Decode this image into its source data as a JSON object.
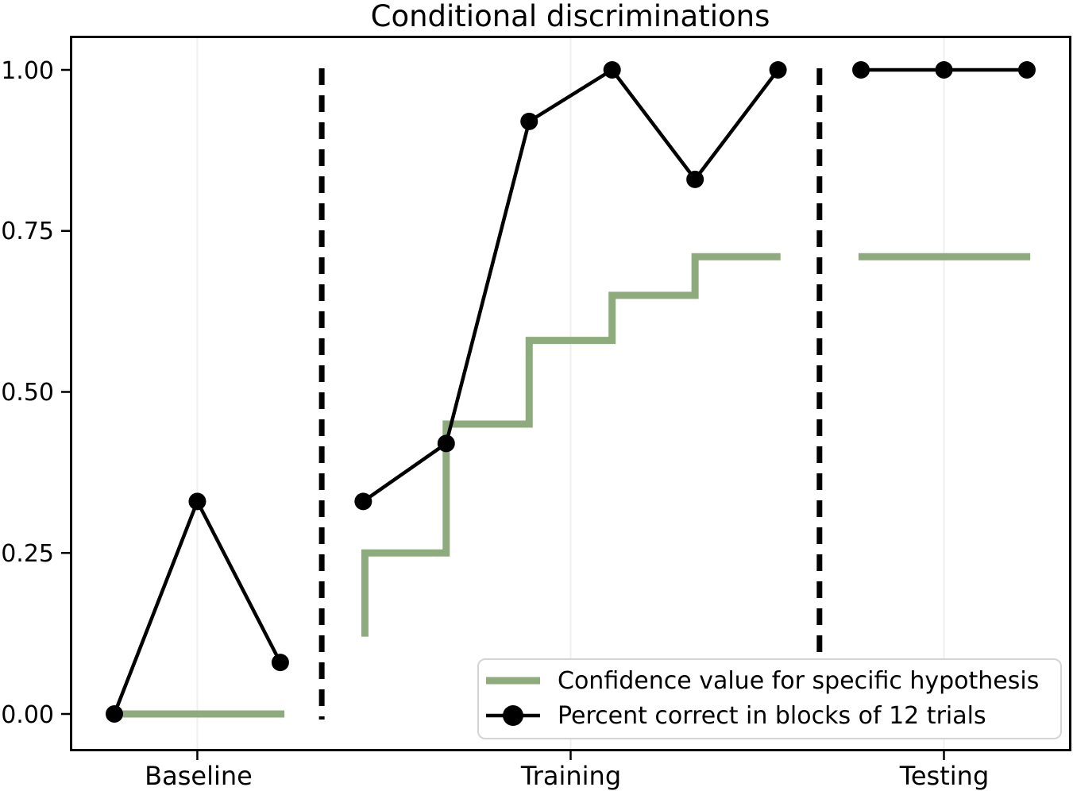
{
  "chart_data": {
    "type": "line",
    "title": "Conditional discriminations",
    "xlabel": "",
    "ylabel": "",
    "ylim": [
      -0.04,
      1.06
    ],
    "grid": "vertical-only-at-xticks",
    "yticks": [
      {
        "value": 0.0,
        "label": "0.00"
      },
      {
        "value": 0.25,
        "label": "0.25"
      },
      {
        "value": 0.5,
        "label": "0.50"
      },
      {
        "value": 0.75,
        "label": "0.75"
      },
      {
        "value": 1.0,
        "label": "1.00"
      }
    ],
    "xticks": [
      {
        "pos": 2.0,
        "label": "Baseline"
      },
      {
        "pos": 6.5,
        "label": "Training"
      },
      {
        "pos": 11.0,
        "label": "Testing"
      }
    ],
    "phases": [
      {
        "label": "Baseline",
        "blocks": [
          1,
          2,
          3
        ]
      },
      {
        "label": "Training",
        "blocks": [
          4,
          5,
          6,
          7,
          8,
          9
        ]
      },
      {
        "label": "Testing",
        "blocks": [
          10,
          11,
          12
        ]
      }
    ],
    "phase_dividers": {
      "style": "dashed",
      "color": "#000000",
      "positions": [
        3.5,
        9.5
      ]
    },
    "series": [
      {
        "name": "Confidence value for specific hypothesis",
        "type": "step",
        "color": "#8EAB7E",
        "line_width": 9,
        "values_per_block": [
          0.0,
          0.0,
          0.0,
          0.25,
          0.45,
          0.58,
          0.65,
          0.71,
          0.71,
          0.71,
          0.71,
          0.71
        ],
        "segments": [
          [
            [
              1.1,
              0.0
            ],
            [
              3.05,
              0.0
            ]
          ],
          [
            [
              4.02,
              0.12
            ],
            [
              4.02,
              0.25
            ],
            [
              5.0,
              0.25
            ],
            [
              5.0,
              0.45
            ],
            [
              6.0,
              0.45
            ],
            [
              6.0,
              0.58
            ],
            [
              7.0,
              0.58
            ],
            [
              7.0,
              0.65
            ],
            [
              8.0,
              0.65
            ],
            [
              8.0,
              0.71
            ],
            [
              9.03,
              0.71
            ]
          ],
          [
            [
              9.97,
              0.71
            ],
            [
              12.04,
              0.71
            ]
          ]
        ]
      },
      {
        "name": "Percent correct in blocks of 12 trials",
        "type": "line-marker",
        "color": "#000000",
        "line_width": 4.5,
        "marker_radius": 11,
        "values_per_block": [
          0.0,
          0.33,
          0.08,
          0.33,
          0.42,
          0.92,
          1.0,
          0.83,
          1.0,
          1.0,
          1.0,
          1.0
        ],
        "segments": [
          [
            [
              1.0,
              0.0
            ],
            [
              2.0,
              0.33
            ],
            [
              3.0,
              0.08
            ]
          ],
          [
            [
              4.0,
              0.33
            ],
            [
              5.0,
              0.42
            ],
            [
              6.0,
              0.92
            ],
            [
              7.0,
              1.0
            ],
            [
              8.0,
              0.83
            ],
            [
              9.0,
              1.0
            ]
          ],
          [
            [
              10.0,
              1.0
            ],
            [
              11.0,
              1.0
            ],
            [
              12.0,
              1.0
            ]
          ]
        ]
      }
    ],
    "legend": {
      "position": "lower right",
      "entries": [
        {
          "label": "Confidence value for specific hypothesis",
          "swatch": "thick-line",
          "color": "#8EAB7E"
        },
        {
          "label": "Percent correct in blocks of 12 trials",
          "swatch": "line-with-dot",
          "color": "#000000"
        }
      ]
    }
  }
}
